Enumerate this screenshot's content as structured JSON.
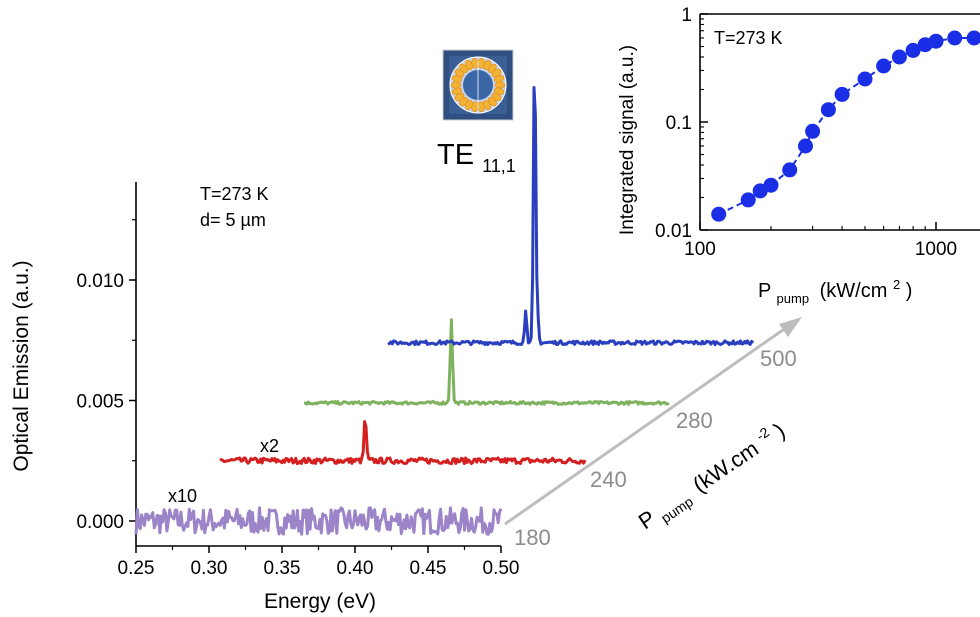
{
  "chart_data": [
    {
      "type": "line",
      "title": "",
      "xlabel": "Energy (eV)",
      "ylabel": "Optical Emission (a.u.)",
      "xlim": [
        0.25,
        0.5
      ],
      "ylim": [
        -0.001,
        0.014
      ],
      "xticks": [
        "0.25",
        "0.30",
        "0.35",
        "0.40",
        "0.45",
        "0.50"
      ],
      "xtick_values": [
        0.25,
        0.3,
        0.35,
        0.4,
        0.45,
        0.5
      ],
      "yticks": [
        "0.000",
        "0.005",
        "0.010"
      ],
      "ytick_values": [
        0.0,
        0.005,
        0.01
      ],
      "grid": false,
      "annotations": {
        "temperature": "T=273 K",
        "diameter": "d= 5 µm",
        "mode_main": "TE",
        "mode_sub": "11,1",
        "scale_x10": "x10",
        "scale_x2": "x2",
        "pump_axis_main": "P",
        "pump_axis_sub": "pump",
        "pump_axis_units": "(kW.cm",
        "pump_axis_exp": "-2",
        "pump_axis_close": ")"
      },
      "series": [
        {
          "pump": "180",
          "color": "#9b84c7",
          "peak_eV": null,
          "peak_height": 0.0,
          "baseline": 0.0,
          "noise": 0.00055
        },
        {
          "pump": "240",
          "color": "#d42020",
          "peak_eV": 0.407,
          "peak_height": 0.0018,
          "baseline": 0.0025,
          "noise": 0.00012
        },
        {
          "pump": "280",
          "color": "#7fb25e",
          "peak_eV": 0.466,
          "peak_height": 0.0035,
          "baseline": 0.0049,
          "noise": 6e-05
        },
        {
          "pump": "500",
          "color": "#2a3fbf",
          "peak_eV": 0.523,
          "peak_height": 0.012,
          "baseline": 0.0074,
          "noise": 8e-05
        }
      ]
    },
    {
      "type": "scatter",
      "title": "",
      "xlabel_main": "P",
      "xlabel_sub": "pump",
      "xlabel_units": "(kW/cm",
      "xlabel_exp": "2",
      "xlabel_close": ")",
      "ylabel": "Integrated signal (a.u.)",
      "annotation": "T=273 K",
      "xscale": "log",
      "yscale": "log",
      "xlim": [
        100,
        1500
      ],
      "ylim": [
        0.01,
        1
      ],
      "xticks": [
        "100",
        "1000"
      ],
      "xtick_values": [
        100,
        1000
      ],
      "yticks": [
        "0.01",
        "0.1",
        "1"
      ],
      "ytick_values": [
        0.01,
        0.1,
        1
      ],
      "color": "#1a2ee6",
      "x": [
        120,
        160,
        180,
        200,
        240,
        280,
        300,
        350,
        400,
        500,
        600,
        700,
        800,
        900,
        1000,
        1200,
        1450
      ],
      "y": [
        0.014,
        0.019,
        0.023,
        0.026,
        0.036,
        0.06,
        0.082,
        0.13,
        0.18,
        0.25,
        0.33,
        0.4,
        0.46,
        0.52,
        0.56,
        0.6,
        0.6
      ]
    }
  ]
}
